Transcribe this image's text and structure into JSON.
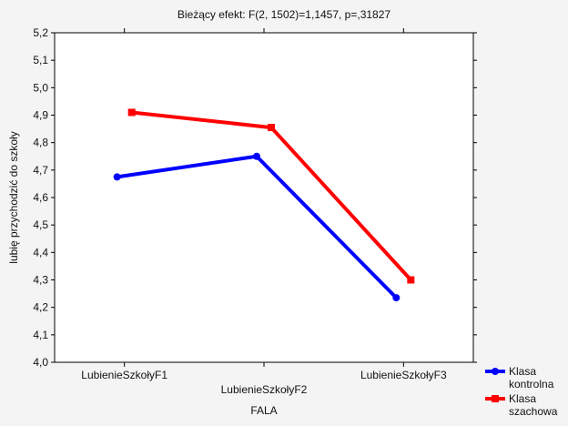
{
  "chart_data": {
    "type": "line",
    "title": "Bieżący efekt: F(2, 1502)=1,1457, p=,31827",
    "xlabel": "FALA",
    "ylabel": "lubię przychodzić do szkoły",
    "categories": [
      "LubienieSzkołyF1",
      "LubienieSzkołyF2",
      "LubienieSzkołyF3"
    ],
    "y_ticks": [
      "4,0",
      "4,1",
      "4,2",
      "4,3",
      "4,4",
      "4,5",
      "4,6",
      "4,7",
      "4,8",
      "4,9",
      "5,0",
      "5,1",
      "5,2"
    ],
    "ylim": [
      4.0,
      5.2
    ],
    "grid": false,
    "legend_position": "bottom-right",
    "series": [
      {
        "name_lines": [
          "Klasa",
          "kontrolna"
        ],
        "color": "#0000ff",
        "marker": "circle",
        "values": [
          4.675,
          4.75,
          4.235
        ]
      },
      {
        "name_lines": [
          "Klasa",
          "szachowa"
        ],
        "color": "#ff0000",
        "marker": "square",
        "values": [
          4.91,
          4.855,
          4.3
        ]
      }
    ]
  }
}
